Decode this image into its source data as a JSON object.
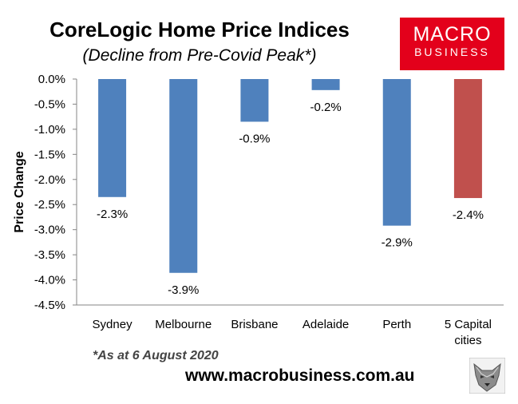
{
  "header": {
    "title": "CoreLogic Home Price Indices",
    "subtitle": "(Decline from Pre-Covid Peak*)"
  },
  "logo": {
    "line1": "MACRO",
    "line2": "BUSINESS"
  },
  "footer": {
    "footnote": "*As at 6 August 2020",
    "url": "www.macrobusiness.com.au"
  },
  "chart_data": {
    "type": "bar",
    "title": "CoreLogic Home Price Indices",
    "subtitle": "(Decline from Pre-Covid Peak*)",
    "xlabel": "",
    "ylabel": "Price Change",
    "ylim": [
      -4.5,
      0
    ],
    "yticks": [
      0,
      -0.5,
      -1.0,
      -1.5,
      -2.0,
      -2.5,
      -3.0,
      -3.5,
      -4.0,
      -4.5
    ],
    "ytick_labels": [
      "0.0%",
      "-0.5%",
      "-1.0%",
      "-1.5%",
      "-2.0%",
      "-2.5%",
      "-3.0%",
      "-3.5%",
      "-4.0%",
      "-4.5%"
    ],
    "categories": [
      "Sydney",
      "Melbourne",
      "Brisbane",
      "Adelaide",
      "Perth",
      "5 Capital cities"
    ],
    "category_lines": [
      [
        "Sydney"
      ],
      [
        "Melbourne"
      ],
      [
        "Brisbane"
      ],
      [
        "Adelaide"
      ],
      [
        "Perth"
      ],
      [
        "5 Capital",
        "cities"
      ]
    ],
    "values": [
      -2.35,
      -3.86,
      -0.85,
      -0.22,
      -2.92,
      -2.37
    ],
    "data_labels": [
      "-2.3%",
      "-3.9%",
      "-0.9%",
      "-0.2%",
      "-2.9%",
      "-2.4%"
    ],
    "colors": [
      "#4f81bd",
      "#4f81bd",
      "#4f81bd",
      "#4f81bd",
      "#4f81bd",
      "#c0504d"
    ],
    "grid": false,
    "legend": "none"
  }
}
